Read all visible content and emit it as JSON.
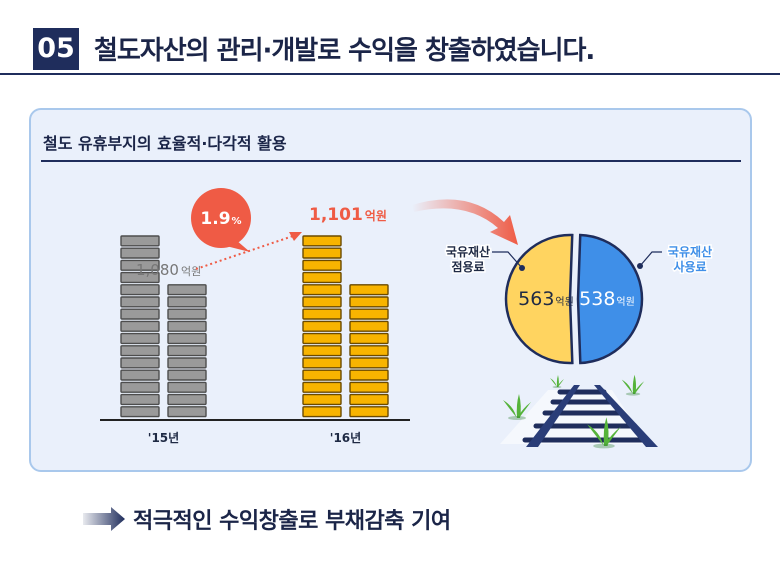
{
  "header": {
    "number": "05",
    "title": "철도자산의 관리·개발로 수익을 창출하였습니다."
  },
  "panel": {
    "title": "철도 유휴부지의 효율적·다각적 활용"
  },
  "chart_data": [
    {
      "type": "bar",
      "categories": [
        "'15년",
        "'16년"
      ],
      "series": [
        {
          "values": [
            1080,
            1101
          ]
        }
      ],
      "data_labels": [
        {
          "value": "1,080",
          "unit": "억원"
        },
        {
          "value": "1,101",
          "unit": "억원"
        }
      ],
      "growth_label": {
        "value": "1.9",
        "unit": "%"
      },
      "colors": {
        "y2015": "#9a9a9a",
        "y2016": "#f8b400",
        "highlight": "#ef5b45"
      }
    },
    {
      "type": "pie",
      "slices": [
        {
          "label": "국유재산 점용료",
          "value": 563,
          "unit": "억원",
          "color": "#ffd460"
        },
        {
          "label": "국유재산 사용료",
          "value": 538,
          "unit": "억원",
          "color": "#3f8fe8"
        }
      ]
    }
  ],
  "footer": {
    "text": "적극적인 수익창출로 부채감축 기여"
  }
}
